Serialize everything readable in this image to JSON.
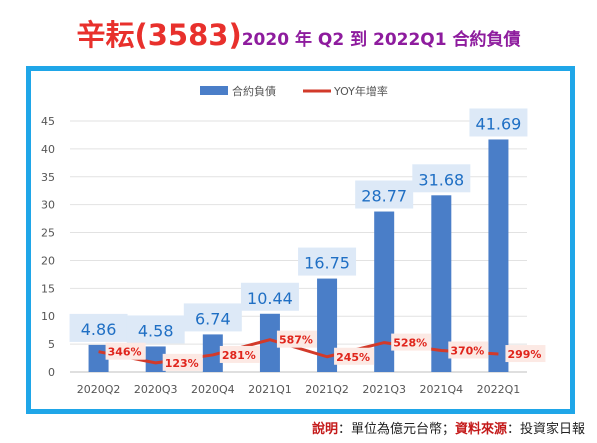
{
  "title": {
    "main": "辛耘(3583)",
    "sub": "2020 年 Q2 到 2022Q1 合約負債"
  },
  "note": {
    "label1": "說明",
    "text1": "：單位為億元台幣；",
    "label2": "資料來源",
    "text2": "：投資家日報"
  },
  "colors": {
    "bar": "#4a7ec8",
    "line": "#d23a2a",
    "bar_label_bg": "#dde9f7",
    "bar_label_text": "#1f6fc4",
    "yoy_label_text": "#e0251c",
    "frame": "#1fa6e8"
  },
  "chart_data": {
    "type": "bar",
    "categories": [
      "2020Q2",
      "2020Q3",
      "2020Q4",
      "2021Q1",
      "2021Q2",
      "2021Q3",
      "2021Q4",
      "2022Q1"
    ],
    "series": [
      {
        "name": "合約負債",
        "type": "bar",
        "values": [
          4.86,
          4.58,
          6.74,
          10.44,
          16.75,
          28.77,
          31.68,
          41.69
        ],
        "labels": [
          "4.86",
          "4.58",
          "6.74",
          "10.44",
          "16.75",
          "28.77",
          "31.68",
          "41.69"
        ]
      },
      {
        "name": "YOY年增率",
        "type": "line",
        "values": [
          346,
          123,
          281,
          587,
          245,
          528,
          370,
          299
        ],
        "labels": [
          "346%",
          "123%",
          "281%",
          "587%",
          "245%",
          "528%",
          "370%",
          "299%"
        ]
      }
    ],
    "ylim": [
      0,
      45
    ],
    "yticks": [
      "0",
      "5",
      "10",
      "15",
      "20",
      "25",
      "30",
      "35",
      "40",
      "45"
    ],
    "grid": true,
    "legend": "top-center"
  }
}
